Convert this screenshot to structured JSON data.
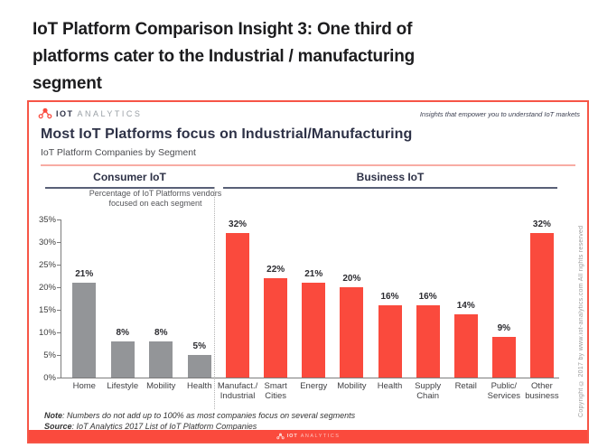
{
  "page": {
    "heading": "IoT Platform Comparison Insight 3: One third of\nplatforms cater to the Industrial / manufacturing\nsegment"
  },
  "figure": {
    "brand": {
      "bold": "IOT",
      "light": "ANALYTICS"
    },
    "tagline": "Insights that empower you to understand IoT markets",
    "title": "Most IoT Platforms focus on Industrial/Manufacturing",
    "subtitle": "IoT Platform Companies by Segment",
    "note": {
      "label": "Note",
      "text": ": Numbers do not add up to 100% as most companies focus on several segments"
    },
    "source": {
      "label": "Source",
      "text": ": IoT Analytics 2017 List of IoT Platform Companies"
    },
    "copyright": "Copyright © 2017 by www.iot-analytics.com All rights reserved",
    "footer_brand": {
      "bold": "IOT",
      "light": "ANALYTICS"
    },
    "colors": {
      "accent_red": "#fa4a3d",
      "bar_gray": "#939598",
      "navy": "#2e3247",
      "pink_rule": "#f8aca4"
    }
  },
  "chart_data": {
    "type": "bar",
    "title": "Most IoT Platforms focus on Industrial/Manufacturing",
    "subtitle": "IoT Platform Companies by Segment",
    "ylabel": "Percentage of IoT Platforms vendors\nfocused on each segment",
    "ylim": [
      0,
      35
    ],
    "ytick_step": 5,
    "ytick_suffix": "%",
    "value_label_suffix": "%",
    "grid": false,
    "legend": "none",
    "groups": [
      {
        "name": "Consumer IoT",
        "color": "#939598",
        "categories": [
          "Home",
          "Lifestyle",
          "Mobility",
          "Health"
        ],
        "values": [
          21,
          8,
          8,
          5
        ]
      },
      {
        "name": "Business IoT",
        "color": "#fa4a3d",
        "categories": [
          "Manufact./\nIndustrial",
          "Smart\nCities",
          "Energy",
          "Mobility",
          "Health",
          "Supply\nChain",
          "Retail",
          "Public/\nServices",
          "Other\nbusiness"
        ],
        "values": [
          32,
          22,
          21,
          20,
          16,
          16,
          14,
          9,
          32
        ]
      }
    ]
  }
}
